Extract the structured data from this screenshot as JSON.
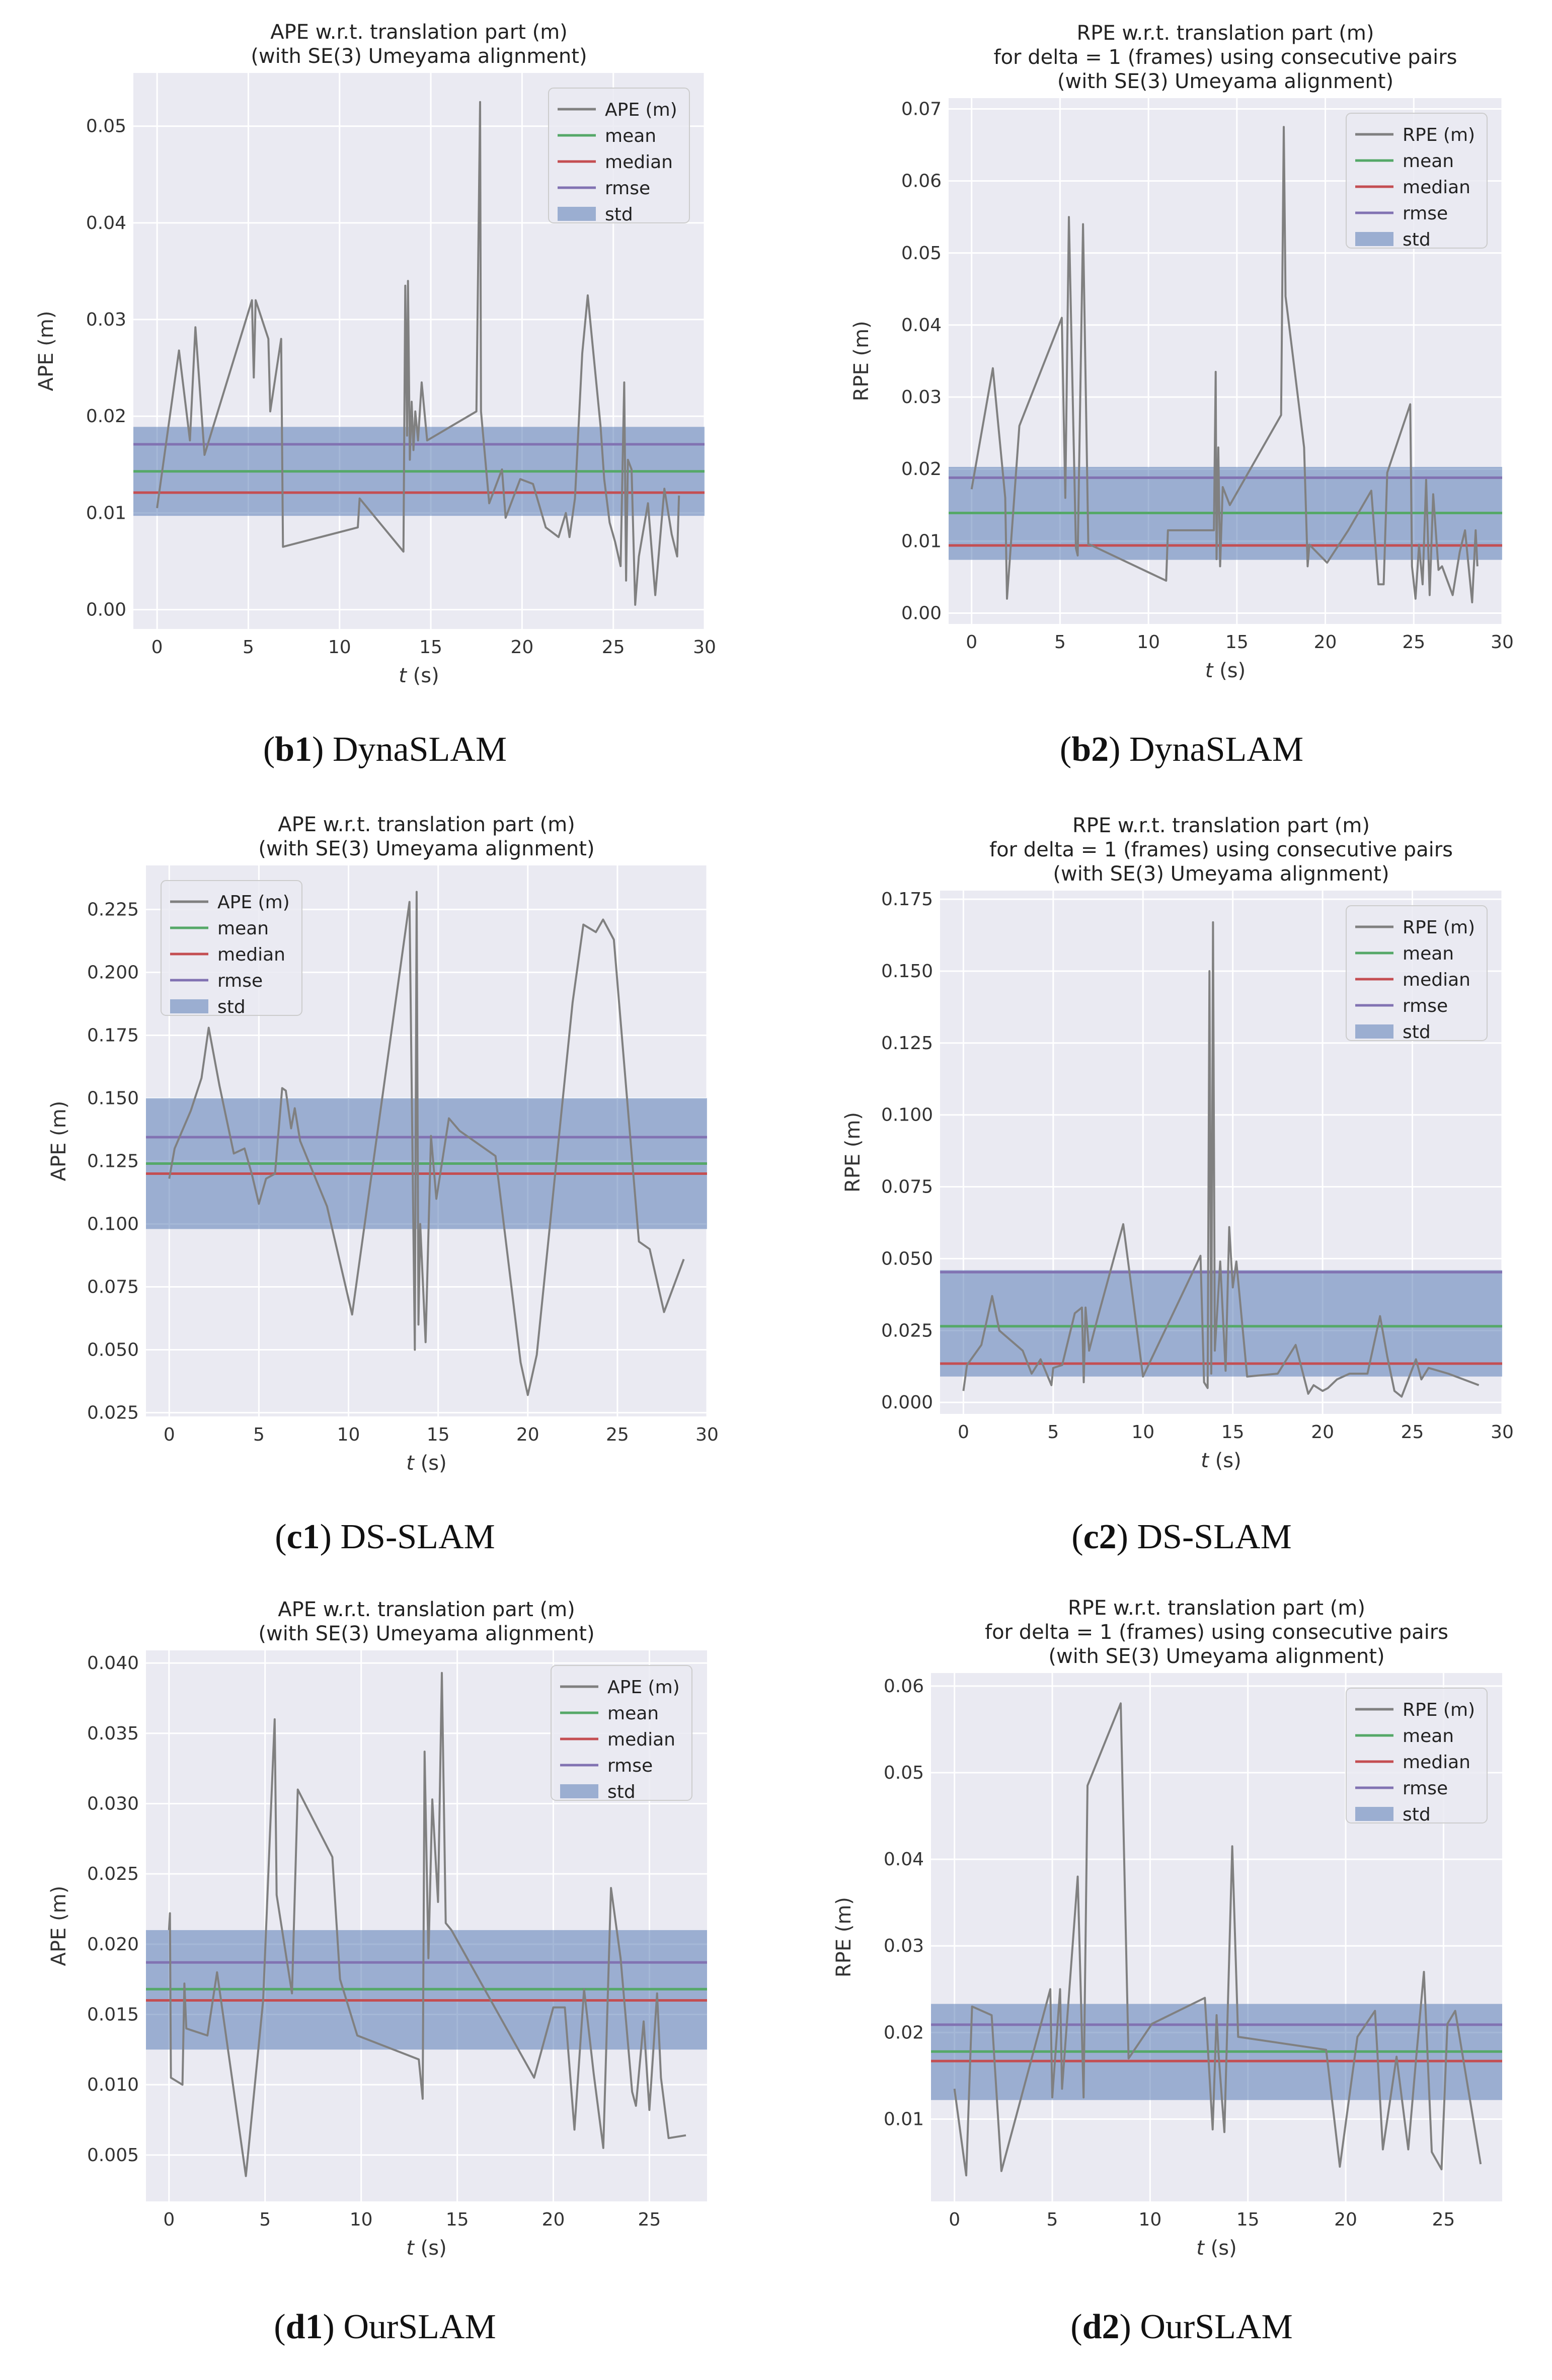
{
  "colors": {
    "plot_bg": "#eaeaf2",
    "grid": "#ffffff",
    "raw": "#808080",
    "mean": "#55a868",
    "median": "#c44e52",
    "rmse": "#8172b2",
    "std": "#4c72b0"
  },
  "chart_data": [
    {
      "id": "b1",
      "type": "line",
      "title_lines": [
        "APE w.r.t. translation part (m)",
        "(with SE(3) Umeyama alignment)"
      ],
      "xlabel": "t (s)",
      "ylabel": "APE (m)",
      "xlim": [
        -1.3,
        30
      ],
      "ylim": [
        -0.002,
        0.0555
      ],
      "xticks": [
        0,
        5,
        10,
        15,
        20,
        25,
        30
      ],
      "yticks": [
        0.0,
        0.01,
        0.02,
        0.03,
        0.04,
        0.05
      ],
      "ytick_labels": [
        "0.00",
        "0.01",
        "0.02",
        "0.03",
        "0.04",
        "0.05"
      ],
      "legend": [
        "APE (m)",
        "mean",
        "median",
        "rmse",
        "std"
      ],
      "legend_position": "top-right",
      "stats": {
        "mean": 0.0143,
        "median": 0.0121,
        "rmse": 0.0171,
        "std_low": 0.0097,
        "std_high": 0.0189
      },
      "x": [
        0,
        1.2,
        1.8,
        2.1,
        2.6,
        5.2,
        5.3,
        5.4,
        6.1,
        6.2,
        6.8,
        6.9,
        11,
        11.1,
        13.5,
        13.6,
        13.7,
        13.75,
        13.85,
        13.95,
        14.05,
        14.15,
        14.3,
        14.5,
        14.8,
        17.5,
        17.7,
        17.75,
        18.2,
        18.9,
        19.1,
        19.9,
        20.6,
        21.3,
        22.0,
        22.4,
        22.6,
        22.9,
        23.3,
        23.6,
        24.3,
        24.5,
        24.8,
        25.1,
        25.4,
        25.6,
        25.7,
        25.8,
        26.0,
        26.2,
        26.4,
        26.9,
        27.3,
        27.8,
        28.2,
        28.5,
        28.6
      ],
      "y": [
        0.0105,
        0.0268,
        0.0175,
        0.0292,
        0.016,
        0.032,
        0.024,
        0.032,
        0.028,
        0.0205,
        0.028,
        0.0065,
        0.0085,
        0.0115,
        0.006,
        0.0335,
        0.018,
        0.034,
        0.0155,
        0.0215,
        0.0165,
        0.0205,
        0.0175,
        0.0235,
        0.0175,
        0.0205,
        0.0525,
        0.0205,
        0.011,
        0.0145,
        0.0095,
        0.0135,
        0.013,
        0.0085,
        0.0075,
        0.01,
        0.0075,
        0.0115,
        0.0265,
        0.0325,
        0.019,
        0.0135,
        0.009,
        0.007,
        0.0045,
        0.0235,
        0.003,
        0.0155,
        0.0145,
        0.0005,
        0.0055,
        0.011,
        0.0015,
        0.0125,
        0.0078,
        0.0055,
        0.0118
      ]
    },
    {
      "id": "b2",
      "type": "line",
      "title_lines": [
        "RPE w.r.t. translation part (m)",
        "for delta = 1 (frames) using consecutive pairs",
        "(with SE(3) Umeyama alignment)"
      ],
      "xlabel": "t (s)",
      "ylabel": "RPE (m)",
      "xlim": [
        -1.3,
        30
      ],
      "ylim": [
        -0.0015,
        0.0715
      ],
      "xticks": [
        0,
        5,
        10,
        15,
        20,
        25,
        30
      ],
      "yticks": [
        0.0,
        0.01,
        0.02,
        0.03,
        0.04,
        0.05,
        0.06,
        0.07
      ],
      "ytick_labels": [
        "0.00",
        "0.01",
        "0.02",
        "0.03",
        "0.04",
        "0.05",
        "0.06",
        "0.07"
      ],
      "legend": [
        "RPE (m)",
        "mean",
        "median",
        "rmse",
        "std"
      ],
      "legend_position": "top-right",
      "stats": {
        "mean": 0.0139,
        "median": 0.0094,
        "rmse": 0.0188,
        "std_low": 0.0074,
        "std_high": 0.0203
      },
      "x": [
        0,
        1.2,
        1.9,
        2.0,
        2.7,
        5.1,
        5.3,
        5.5,
        5.9,
        6.0,
        6.3,
        6.6,
        6.7,
        11,
        11.1,
        13.7,
        13.8,
        13.85,
        13.95,
        14.05,
        14.2,
        14.6,
        17.5,
        17.65,
        17.75,
        18.8,
        19.0,
        19.1,
        20.1,
        21.3,
        22.6,
        23.0,
        23.3,
        23.5,
        24.8,
        24.9,
        25.1,
        25.3,
        25.5,
        25.7,
        25.9,
        26.1,
        26.4,
        26.6,
        27.2,
        27.6,
        27.9,
        28.3,
        28.5,
        28.6
      ],
      "y": [
        0.0172,
        0.034,
        0.016,
        0.002,
        0.026,
        0.041,
        0.016,
        0.055,
        0.009,
        0.008,
        0.054,
        0.0095,
        0.0095,
        0.0045,
        0.0115,
        0.0115,
        0.0335,
        0.0075,
        0.023,
        0.0065,
        0.0175,
        0.015,
        0.0275,
        0.0675,
        0.044,
        0.023,
        0.0065,
        0.0095,
        0.007,
        0.0115,
        0.017,
        0.004,
        0.004,
        0.0195,
        0.029,
        0.0065,
        0.002,
        0.0095,
        0.004,
        0.0185,
        0.0025,
        0.0165,
        0.006,
        0.0065,
        0.0025,
        0.0085,
        0.0115,
        0.0015,
        0.0115,
        0.0065
      ]
    },
    {
      "id": "c1",
      "type": "line",
      "title_lines": [
        "APE w.r.t. translation part (m)",
        "(with SE(3) Umeyama alignment)"
      ],
      "xlabel": "t (s)",
      "ylabel": "APE (m)",
      "xlim": [
        -1.3,
        30
      ],
      "ylim": [
        0.0235,
        0.2425
      ],
      "xticks": [
        0,
        5,
        10,
        15,
        20,
        25,
        30
      ],
      "yticks": [
        0.025,
        0.05,
        0.075,
        0.1,
        0.125,
        0.15,
        0.175,
        0.2,
        0.225
      ],
      "ytick_labels": [
        "0.025",
        "0.050",
        "0.075",
        "0.100",
        "0.125",
        "0.150",
        "0.175",
        "0.200",
        "0.225"
      ],
      "legend": [
        "APE (m)",
        "mean",
        "median",
        "rmse",
        "std"
      ],
      "legend_position": "top-left",
      "stats": {
        "mean": 0.124,
        "median": 0.12,
        "rmse": 0.1345,
        "std_low": 0.098,
        "std_high": 0.15
      },
      "x": [
        0,
        0.3,
        1.2,
        1.8,
        2.2,
        2.8,
        3.6,
        4.2,
        4.6,
        5.0,
        5.4,
        5.9,
        6.3,
        6.5,
        6.8,
        7.0,
        7.3,
        8.8,
        10.2,
        13.4,
        13.7,
        13.8,
        13.9,
        14.0,
        14.3,
        14.6,
        14.9,
        15.6,
        16.2,
        18.2,
        19.6,
        20.0,
        20.5,
        22.5,
        23.1,
        23.8,
        24.2,
        24.8,
        26.2,
        26.8,
        27.6,
        28.7
      ],
      "y": [
        0.118,
        0.13,
        0.145,
        0.158,
        0.178,
        0.155,
        0.128,
        0.13,
        0.12,
        0.108,
        0.118,
        0.12,
        0.154,
        0.153,
        0.138,
        0.146,
        0.133,
        0.107,
        0.064,
        0.228,
        0.05,
        0.232,
        0.06,
        0.1,
        0.053,
        0.135,
        0.11,
        0.142,
        0.137,
        0.127,
        0.045,
        0.032,
        0.048,
        0.188,
        0.219,
        0.216,
        0.221,
        0.213,
        0.093,
        0.09,
        0.065,
        0.086
      ]
    },
    {
      "id": "c2",
      "type": "line",
      "title_lines": [
        "RPE w.r.t. translation part (m)",
        "for delta = 1 (frames) using consecutive pairs",
        "(with SE(3) Umeyama alignment)"
      ],
      "xlabel": "t (s)",
      "ylabel": "RPE (m)",
      "xlim": [
        -1.3,
        30
      ],
      "ylim": [
        -0.004,
        0.178
      ],
      "xticks": [
        0,
        5,
        10,
        15,
        20,
        25,
        30
      ],
      "yticks": [
        0.0,
        0.025,
        0.05,
        0.075,
        0.1,
        0.125,
        0.15,
        0.175
      ],
      "ytick_labels": [
        "0.000",
        "0.025",
        "0.050",
        "0.075",
        "0.100",
        "0.125",
        "0.150",
        "0.175"
      ],
      "legend": [
        "RPE (m)",
        "mean",
        "median",
        "rmse",
        "std"
      ],
      "legend_position": "top-right",
      "stats": {
        "mean": 0.0265,
        "median": 0.0135,
        "rmse": 0.0453,
        "std_low": 0.009,
        "std_high": 0.046
      },
      "x": [
        0,
        0.2,
        1.0,
        1.6,
        2.0,
        3.3,
        3.8,
        4.3,
        4.9,
        5.0,
        5.5,
        6.2,
        6.6,
        6.7,
        6.8,
        7.0,
        7.5,
        8.9,
        10.0,
        13.2,
        13.4,
        13.6,
        13.7,
        13.8,
        13.9,
        14.0,
        14.3,
        14.6,
        14.8,
        15.0,
        15.2,
        15.8,
        17.5,
        18.5,
        19.2,
        19.5,
        20.0,
        20.3,
        20.8,
        21.5,
        22.5,
        23.2,
        23.6,
        24.0,
        24.4,
        25.2,
        25.5,
        25.9,
        27.0,
        28.7
      ],
      "y": [
        0.004,
        0.013,
        0.02,
        0.037,
        0.025,
        0.018,
        0.01,
        0.015,
        0.006,
        0.012,
        0.013,
        0.031,
        0.033,
        0.007,
        0.033,
        0.018,
        0.03,
        0.062,
        0.009,
        0.051,
        0.007,
        0.005,
        0.15,
        0.01,
        0.167,
        0.018,
        0.049,
        0.011,
        0.061,
        0.04,
        0.049,
        0.009,
        0.01,
        0.02,
        0.003,
        0.006,
        0.004,
        0.005,
        0.008,
        0.01,
        0.01,
        0.03,
        0.016,
        0.004,
        0.002,
        0.015,
        0.008,
        0.012,
        0.01,
        0.006
      ]
    },
    {
      "id": "d1",
      "type": "line",
      "title_lines": [
        "APE w.r.t. translation part (m)",
        "(with SE(3) Umeyama alignment)"
      ],
      "xlabel": "t (s)",
      "ylabel": "APE (m)",
      "xlim": [
        -1.2,
        28.0
      ],
      "ylim": [
        0.0017,
        0.0409
      ],
      "xticks": [
        0,
        5,
        10,
        15,
        20,
        25
      ],
      "yticks": [
        0.005,
        0.01,
        0.015,
        0.02,
        0.025,
        0.03,
        0.035,
        0.04
      ],
      "ytick_labels": [
        "0.005",
        "0.010",
        "0.015",
        "0.020",
        "0.025",
        "0.030",
        "0.035",
        "0.040"
      ],
      "legend": [
        "APE (m)",
        "mean",
        "median",
        "rmse",
        "std"
      ],
      "legend_position": "top-right",
      "stats": {
        "mean": 0.0168,
        "median": 0.016,
        "rmse": 0.0187,
        "std_low": 0.0125,
        "std_high": 0.021
      },
      "x": [
        0,
        0.05,
        0.1,
        0.7,
        0.8,
        0.9,
        2.0,
        2.5,
        4.0,
        4.9,
        5.5,
        5.6,
        6.4,
        6.7,
        8.5,
        8.9,
        9.8,
        13.0,
        13.2,
        13.3,
        13.5,
        13.7,
        14.0,
        14.2,
        14.4,
        14.7,
        19.0,
        20.0,
        20.6,
        21.1,
        21.6,
        22.1,
        22.6,
        23.0,
        23.5,
        24.1,
        24.3,
        24.7,
        25.0,
        25.4,
        25.6,
        26.0,
        26.9
      ],
      "y": [
        0.021,
        0.0222,
        0.0105,
        0.01,
        0.0172,
        0.014,
        0.0135,
        0.018,
        0.0035,
        0.016,
        0.036,
        0.0235,
        0.0165,
        0.031,
        0.0262,
        0.0175,
        0.0135,
        0.0118,
        0.009,
        0.0337,
        0.019,
        0.0303,
        0.023,
        0.0393,
        0.0215,
        0.021,
        0.0105,
        0.0155,
        0.0155,
        0.0068,
        0.0168,
        0.0108,
        0.0055,
        0.024,
        0.019,
        0.0095,
        0.0085,
        0.0145,
        0.0082,
        0.0165,
        0.0105,
        0.0062,
        0.0064
      ]
    },
    {
      "id": "d2",
      "type": "line",
      "title_lines": [
        "RPE w.r.t. translation part (m)",
        "for delta = 1 (frames) using consecutive pairs",
        "(with SE(3) Umeyama alignment)"
      ],
      "xlabel": "t (s)",
      "ylabel": "RPE (m)",
      "xlim": [
        -1.2,
        28.0
      ],
      "ylim": [
        0.0005,
        0.0615
      ],
      "xticks": [
        0,
        5,
        10,
        15,
        20,
        25
      ],
      "yticks": [
        0.01,
        0.02,
        0.03,
        0.04,
        0.05,
        0.06
      ],
      "ytick_labels": [
        "0.01",
        "0.02",
        "0.03",
        "0.04",
        "0.05",
        "0.06"
      ],
      "legend": [
        "RPE (m)",
        "mean",
        "median",
        "rmse",
        "std"
      ],
      "legend_position": "top-right",
      "stats": {
        "mean": 0.0178,
        "median": 0.0167,
        "rmse": 0.0209,
        "std_low": 0.0122,
        "std_high": 0.0233
      },
      "x": [
        0,
        0.6,
        0.9,
        1.9,
        2.4,
        4.9,
        5.0,
        5.4,
        5.5,
        6.3,
        6.6,
        6.8,
        8.5,
        8.9,
        10.1,
        12.8,
        13.2,
        13.4,
        13.5,
        13.8,
        14.2,
        14.5,
        19.0,
        19.7,
        20.6,
        21.5,
        21.9,
        22.6,
        23.2,
        23.6,
        24.0,
        24.4,
        24.9,
        25.2,
        25.6,
        26.9
      ],
      "y": [
        0.0135,
        0.0035,
        0.023,
        0.022,
        0.004,
        0.025,
        0.0125,
        0.025,
        0.0135,
        0.038,
        0.0125,
        0.0485,
        0.058,
        0.017,
        0.021,
        0.024,
        0.0088,
        0.022,
        0.0175,
        0.0085,
        0.0415,
        0.0195,
        0.018,
        0.0045,
        0.0195,
        0.0225,
        0.0065,
        0.0172,
        0.0065,
        0.017,
        0.027,
        0.0062,
        0.0042,
        0.021,
        0.0225,
        0.0048
      ]
    }
  ],
  "captions": [
    {
      "id": "b1",
      "label": "b1",
      "text": "DynaSLAM"
    },
    {
      "id": "b2",
      "label": "b2",
      "text": "DynaSLAM"
    },
    {
      "id": "c1",
      "label": "c1",
      "text": "DS-SLAM"
    },
    {
      "id": "c2",
      "label": "c2",
      "text": "DS-SLAM"
    },
    {
      "id": "d1",
      "label": "d1",
      "text": "OurSLAM"
    },
    {
      "id": "d2",
      "label": "d2",
      "text": "OurSLAM"
    }
  ]
}
